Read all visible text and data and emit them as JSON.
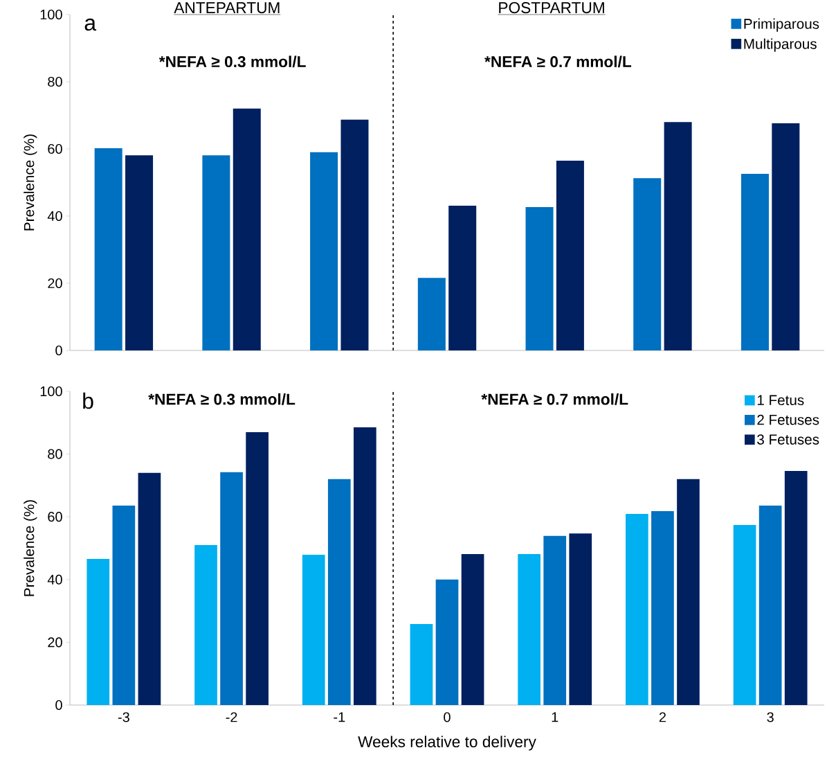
{
  "chart_data": [
    {
      "type": "bar",
      "x": [
        -3,
        -2,
        -1,
        0,
        1,
        2,
        3
      ],
      "xlim": [
        -3.5,
        3.5
      ],
      "xticks": [
        -3,
        -2,
        -1,
        0,
        1,
        2,
        3
      ],
      "ylim": [
        0,
        100
      ],
      "yticks": [
        0,
        20,
        40,
        60,
        80,
        100
      ],
      "ylabel": "Prevalence (%)",
      "tick_labels": "y",
      "legend": "top right",
      "annotations": [
        "a",
        "ANTEPARTUM",
        "POSTPARTUM",
        "*NEFA ≥ 0.3 mmol/L",
        "*NEFA ≥ 0.7 mmol/L"
      ],
      "ref_lines": [
        {
          "axis": "x",
          "value": -0.5,
          "line_style": "dashed",
          "color": "#000000"
        }
      ],
      "series": [
        {
          "name": "Primiparous",
          "color": "#0070c0",
          "values": [
            60.2,
            58.1,
            59.0,
            21.6,
            42.7,
            51.3,
            52.6
          ]
        },
        {
          "name": "Multiparous",
          "color": "#002060",
          "values": [
            58.1,
            72.0,
            68.7,
            43.1,
            56.5,
            68.0,
            67.6
          ]
        }
      ]
    },
    {
      "type": "bar",
      "x": [
        -3,
        -2,
        -1,
        0,
        1,
        2,
        3
      ],
      "xlim": [
        -3.5,
        3.5
      ],
      "xticks": [
        -3,
        -2,
        -1,
        0,
        1,
        2,
        3
      ],
      "ylim": [
        0,
        100
      ],
      "yticks": [
        0,
        20,
        40,
        60,
        80,
        100
      ],
      "ylabel": "Prevalence (%)",
      "xlabel": "Weeks relative to delivery",
      "legend": "top right",
      "annotations": [
        "b",
        "*NEFA ≥ 0.3 mmol/L",
        "*NEFA ≥ 0.7 mmol/L"
      ],
      "ref_lines": [
        {
          "axis": "x",
          "value": -0.5,
          "line_style": "dashed",
          "color": "#000000"
        }
      ],
      "series": [
        {
          "name": "1 Fetus",
          "color": "#00b0f0",
          "values": [
            46.6,
            51.0,
            47.9,
            25.8,
            48.1,
            60.9,
            57.4
          ]
        },
        {
          "name": "2 Fetuses",
          "color": "#0070c0",
          "values": [
            63.6,
            74.2,
            72.0,
            40.0,
            53.9,
            61.8,
            63.6
          ]
        },
        {
          "name": "3 Fetuses",
          "color": "#002060",
          "values": [
            74.0,
            87.0,
            88.5,
            48.1,
            54.7,
            72.0,
            74.6
          ]
        }
      ]
    }
  ]
}
